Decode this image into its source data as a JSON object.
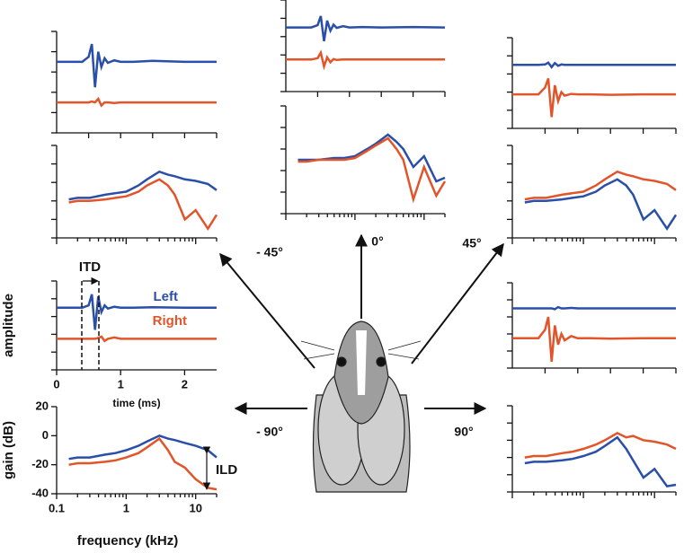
{
  "chart_data": [
    {
      "type": "line",
      "direction": "- 45°",
      "x": [
        0,
        0.4,
        0.5,
        0.55,
        0.6,
        0.65,
        0.7,
        0.75,
        0.8,
        0.9,
        1.0,
        1.2,
        1.5,
        2.0,
        2.5
      ],
      "xlim": [
        0,
        2.5
      ],
      "ylim": [
        -1,
        1
      ],
      "series": [
        {
          "color": "#2a4fa8",
          "values": [
            0.4,
            0.4,
            0.5,
            0.75,
            -0.1,
            0.6,
            0.3,
            0.47,
            0.38,
            0.43,
            0.4,
            0.4,
            0.42,
            0.4,
            0.4
          ]
        },
        {
          "color": "#e2542a",
          "values": [
            -0.4,
            -0.4,
            -0.4,
            -0.38,
            -0.4,
            -0.33,
            -0.46,
            -0.4,
            -0.4,
            -0.41,
            -0.4,
            -0.4,
            -0.4,
            -0.4,
            -0.4
          ]
        }
      ]
    },
    {
      "type": "line",
      "log_x": true,
      "x": [
        0.15,
        0.2,
        0.3,
        0.5,
        0.7,
        1,
        1.5,
        2,
        3,
        4,
        5,
        7,
        10,
        15,
        20
      ],
      "xlim": [
        0.1,
        20
      ],
      "ylim": [
        -40,
        20
      ],
      "series": [
        {
          "color": "#2a4fa8",
          "values": [
            -15,
            -14,
            -14,
            -12,
            -11,
            -10,
            -6,
            -2,
            3,
            1,
            0,
            -2,
            -3,
            -5,
            -9
          ]
        },
        {
          "color": "#e2542a",
          "values": [
            -17,
            -16,
            -16,
            -15,
            -14,
            -13,
            -10,
            -6,
            -2,
            -6,
            -12,
            -28,
            -22,
            -34,
            -25
          ]
        }
      ]
    },
    {
      "type": "line",
      "direction": "0°",
      "x": [
        0,
        0.4,
        0.5,
        0.55,
        0.6,
        0.65,
        0.7,
        0.75,
        0.8,
        0.9,
        1.0,
        1.2,
        1.5,
        2.0,
        2.5
      ],
      "xlim": [
        0,
        2.5
      ],
      "ylim": [
        -1,
        1
      ],
      "series": [
        {
          "color": "#2a4fa8",
          "values": [
            0.4,
            0.4,
            0.45,
            0.65,
            0.1,
            0.55,
            0.33,
            0.46,
            0.39,
            0.43,
            0.4,
            0.41,
            0.4,
            0.41,
            0.4
          ]
        },
        {
          "color": "#e2542a",
          "values": [
            -0.3,
            -0.3,
            -0.27,
            -0.15,
            -0.45,
            -0.25,
            -0.36,
            -0.29,
            -0.31,
            -0.3,
            -0.3,
            -0.3,
            -0.3,
            -0.3,
            -0.3
          ]
        }
      ]
    },
    {
      "type": "line",
      "log_x": true,
      "x": [
        0.15,
        0.2,
        0.3,
        0.5,
        0.7,
        1,
        1.5,
        2,
        3,
        4,
        5,
        7,
        10,
        15,
        20
      ],
      "xlim": [
        0.1,
        20
      ],
      "ylim": [
        -40,
        20
      ],
      "series": [
        {
          "color": "#2a4fa8",
          "values": [
            -10,
            -10,
            -10,
            -9,
            -9,
            -8,
            -4,
            -1,
            4,
            0,
            -4,
            -14,
            -8,
            -22,
            -20
          ]
        },
        {
          "color": "#e2542a",
          "values": [
            -11,
            -11,
            -10,
            -10,
            -10,
            -9,
            -5,
            -2,
            2,
            -4,
            -10,
            -32,
            -14,
            -30,
            -22
          ]
        }
      ]
    },
    {
      "type": "line",
      "direction": "45°",
      "x": [
        0,
        0.4,
        0.5,
        0.55,
        0.6,
        0.65,
        0.7,
        0.75,
        0.8,
        0.9,
        1.0,
        1.2,
        1.5,
        2.0,
        2.5
      ],
      "xlim": [
        0,
        2.5
      ],
      "ylim": [
        -1,
        1
      ],
      "series": [
        {
          "color": "#2a4fa8",
          "values": [
            0.4,
            0.4,
            0.41,
            0.45,
            0.35,
            0.44,
            0.38,
            0.41,
            0.4,
            0.4,
            0.4,
            0.4,
            0.4,
            0.4,
            0.4
          ]
        },
        {
          "color": "#e2542a",
          "values": [
            -0.25,
            -0.25,
            -0.1,
            0.1,
            -0.75,
            -0.05,
            -0.4,
            -0.2,
            -0.28,
            -0.24,
            -0.25,
            -0.25,
            -0.26,
            -0.25,
            -0.25
          ]
        }
      ]
    },
    {
      "type": "line",
      "log_x": true,
      "x": [
        0.15,
        0.2,
        0.3,
        0.5,
        0.7,
        1,
        1.5,
        2,
        3,
        4,
        5,
        7,
        10,
        15,
        20
      ],
      "xlim": [
        0.1,
        20
      ],
      "ylim": [
        -40,
        20
      ],
      "series": [
        {
          "color": "#2a4fa8",
          "values": [
            -17,
            -16,
            -16,
            -15,
            -14,
            -13,
            -10,
            -6,
            -2,
            -6,
            -12,
            -28,
            -22,
            -34,
            -25
          ]
        },
        {
          "color": "#e2542a",
          "values": [
            -15,
            -14,
            -14,
            -12,
            -11,
            -10,
            -6,
            -2,
            3,
            1,
            0,
            -2,
            -3,
            -5,
            -9
          ]
        }
      ]
    },
    {
      "type": "line",
      "direction": "- 90°",
      "x": [
        0,
        0.4,
        0.5,
        0.55,
        0.6,
        0.65,
        0.7,
        0.75,
        0.8,
        0.9,
        1.0,
        1.2,
        1.5,
        2.0,
        2.5
      ],
      "xlim": [
        0,
        2.5
      ],
      "ylim": [
        -1,
        1
      ],
      "xticks": [
        0,
        1,
        2
      ],
      "xlabel": "time (ms)",
      "ylabel": "amplitude",
      "annotation": "ITD",
      "series": [
        {
          "name": "Left",
          "color": "#2a4fa8",
          "values": [
            0.4,
            0.4,
            0.45,
            0.7,
            -0.1,
            0.65,
            0.3,
            0.45,
            0.38,
            0.42,
            0.4,
            0.4,
            0.41,
            0.4,
            0.4
          ]
        },
        {
          "name": "Right",
          "color": "#e2542a",
          "values": [
            -0.3,
            -0.3,
            -0.3,
            -0.3,
            -0.3,
            -0.28,
            -0.25,
            -0.35,
            -0.3,
            -0.27,
            -0.3,
            -0.3,
            -0.3,
            -0.3,
            -0.3
          ]
        }
      ]
    },
    {
      "type": "line",
      "log_x": true,
      "x": [
        0.15,
        0.2,
        0.3,
        0.5,
        0.7,
        1,
        1.5,
        2,
        3,
        4,
        5,
        7,
        10,
        15,
        20
      ],
      "xlim": [
        0.1,
        20
      ],
      "ylim": [
        -40,
        20
      ],
      "xticks": [
        0.1,
        1,
        10
      ],
      "yticks": [
        20,
        0,
        -20,
        -40
      ],
      "xlabel": "frequency (kHz)",
      "ylabel": "gain (dB)",
      "annotation": "ILD",
      "series": [
        {
          "color": "#2a4fa8",
          "values": [
            -16,
            -15,
            -15,
            -13,
            -12,
            -10,
            -7,
            -4,
            0,
            -2,
            -3,
            -5,
            -7,
            -10,
            -15
          ]
        },
        {
          "color": "#e2542a",
          "values": [
            -20,
            -19,
            -19,
            -18,
            -17,
            -15,
            -12,
            -8,
            -2,
            -10,
            -18,
            -22,
            -30,
            -36,
            -37
          ]
        }
      ]
    },
    {
      "type": "line",
      "direction": "90°",
      "x": [
        0,
        0.4,
        0.5,
        0.55,
        0.6,
        0.65,
        0.7,
        0.75,
        0.8,
        0.9,
        1.0,
        1.2,
        1.5,
        2.0,
        2.5
      ],
      "xlim": [
        0,
        2.5
      ],
      "ylim": [
        -1,
        1
      ],
      "series": [
        {
          "color": "#2a4fa8",
          "values": [
            0.4,
            0.4,
            0.4,
            0.4,
            0.4,
            0.38,
            0.43,
            0.4,
            0.4,
            0.41,
            0.4,
            0.4,
            0.4,
            0.4,
            0.4
          ]
        },
        {
          "color": "#e2542a",
          "values": [
            -0.3,
            -0.3,
            -0.1,
            0.2,
            -0.85,
            0.0,
            -0.45,
            -0.2,
            -0.35,
            -0.25,
            -0.3,
            -0.3,
            -0.31,
            -0.3,
            -0.3
          ]
        }
      ]
    },
    {
      "type": "line",
      "log_x": true,
      "x": [
        0.15,
        0.2,
        0.3,
        0.5,
        0.7,
        1,
        1.5,
        2,
        3,
        4,
        5,
        7,
        10,
        15,
        20
      ],
      "xlim": [
        0.1,
        20
      ],
      "ylim": [
        -40,
        20
      ],
      "series": [
        {
          "color": "#2a4fa8",
          "values": [
            -20,
            -19,
            -19,
            -18,
            -17,
            -15,
            -12,
            -8,
            -2,
            -10,
            -18,
            -30,
            -24,
            -36,
            -35
          ]
        },
        {
          "color": "#e2542a",
          "values": [
            -16,
            -15,
            -15,
            -13,
            -12,
            -10,
            -7,
            -4,
            1,
            -2,
            -1,
            -4,
            -5,
            -7,
            -10
          ]
        }
      ]
    }
  ]
}
